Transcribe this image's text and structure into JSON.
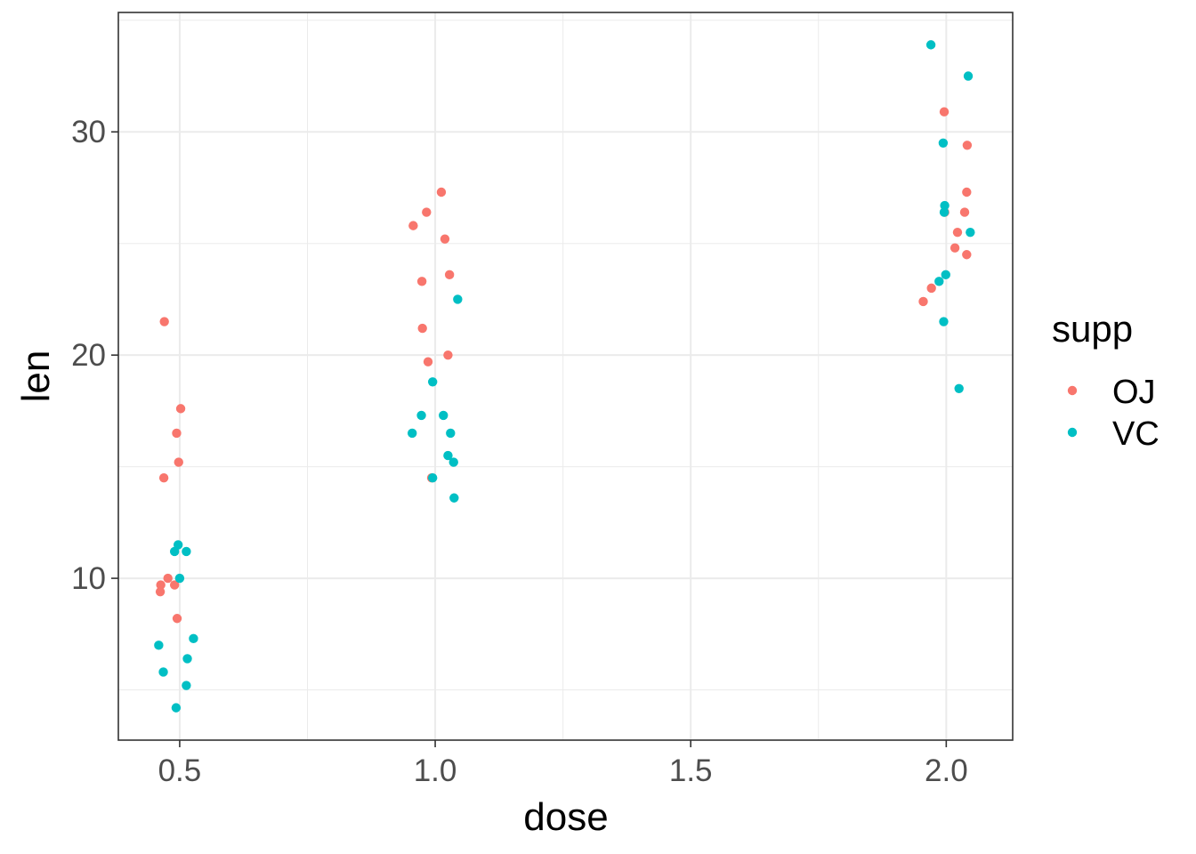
{
  "chart_data": {
    "type": "scatter",
    "xlabel": "dose",
    "ylabel": "len",
    "xlim": [
      0.38,
      2.13
    ],
    "ylim": [
      2.75,
      35.35
    ],
    "x_ticks": [
      0.5,
      1.0,
      1.5,
      2.0
    ],
    "x_tick_labels": [
      "0.5",
      "1.0",
      "1.5",
      "2.0"
    ],
    "y_ticks": [
      10,
      20,
      30
    ],
    "y_tick_labels": [
      "10",
      "20",
      "30"
    ],
    "grid": true,
    "legend": {
      "title": "supp",
      "position": "right"
    },
    "series": [
      {
        "name": "OJ",
        "color": "#F8766D",
        "points": [
          [
            0.47,
            21.5
          ],
          [
            0.502,
            17.6
          ],
          [
            0.494,
            16.5
          ],
          [
            0.498,
            15.2
          ],
          [
            0.469,
            14.5
          ],
          [
            0.477,
            10.0
          ],
          [
            0.463,
            9.7
          ],
          [
            0.49,
            9.7
          ],
          [
            0.462,
            9.4
          ],
          [
            0.495,
            8.2
          ],
          [
            1.012,
            27.3
          ],
          [
            0.983,
            26.4
          ],
          [
            0.957,
            25.8
          ],
          [
            1.019,
            25.2
          ],
          [
            1.028,
            23.6
          ],
          [
            0.974,
            23.3
          ],
          [
            0.975,
            21.2
          ],
          [
            0.986,
            19.7
          ],
          [
            1.025,
            20.0
          ],
          [
            0.993,
            14.5
          ],
          [
            1.996,
            30.9
          ],
          [
            2.041,
            29.4
          ],
          [
            2.04,
            27.3
          ],
          [
            1.997,
            26.4
          ],
          [
            2.036,
            26.4
          ],
          [
            2.022,
            25.5
          ],
          [
            2.017,
            24.8
          ],
          [
            2.04,
            24.5
          ],
          [
            1.971,
            23.0
          ],
          [
            1.955,
            22.4
          ]
        ]
      },
      {
        "name": "VC",
        "color": "#00BFC4",
        "points": [
          [
            0.497,
            11.5
          ],
          [
            0.513,
            11.2
          ],
          [
            0.49,
            11.2
          ],
          [
            0.5,
            10.0
          ],
          [
            0.527,
            7.3
          ],
          [
            0.459,
            7.0
          ],
          [
            0.515,
            6.4
          ],
          [
            0.468,
            5.8
          ],
          [
            0.513,
            5.2
          ],
          [
            0.493,
            4.2
          ],
          [
            1.044,
            22.5
          ],
          [
            0.995,
            18.8
          ],
          [
            0.973,
            17.3
          ],
          [
            1.016,
            17.3
          ],
          [
            0.955,
            16.5
          ],
          [
            1.03,
            16.5
          ],
          [
            1.025,
            15.5
          ],
          [
            1.036,
            15.2
          ],
          [
            0.995,
            14.5
          ],
          [
            1.037,
            13.6
          ],
          [
            1.97,
            33.9
          ],
          [
            2.043,
            32.5
          ],
          [
            1.994,
            29.5
          ],
          [
            1.997,
            26.7
          ],
          [
            1.996,
            26.4
          ],
          [
            2.047,
            25.5
          ],
          [
            1.999,
            23.6
          ],
          [
            1.986,
            23.3
          ],
          [
            1.995,
            21.5
          ],
          [
            2.025,
            18.5
          ]
        ]
      }
    ]
  }
}
